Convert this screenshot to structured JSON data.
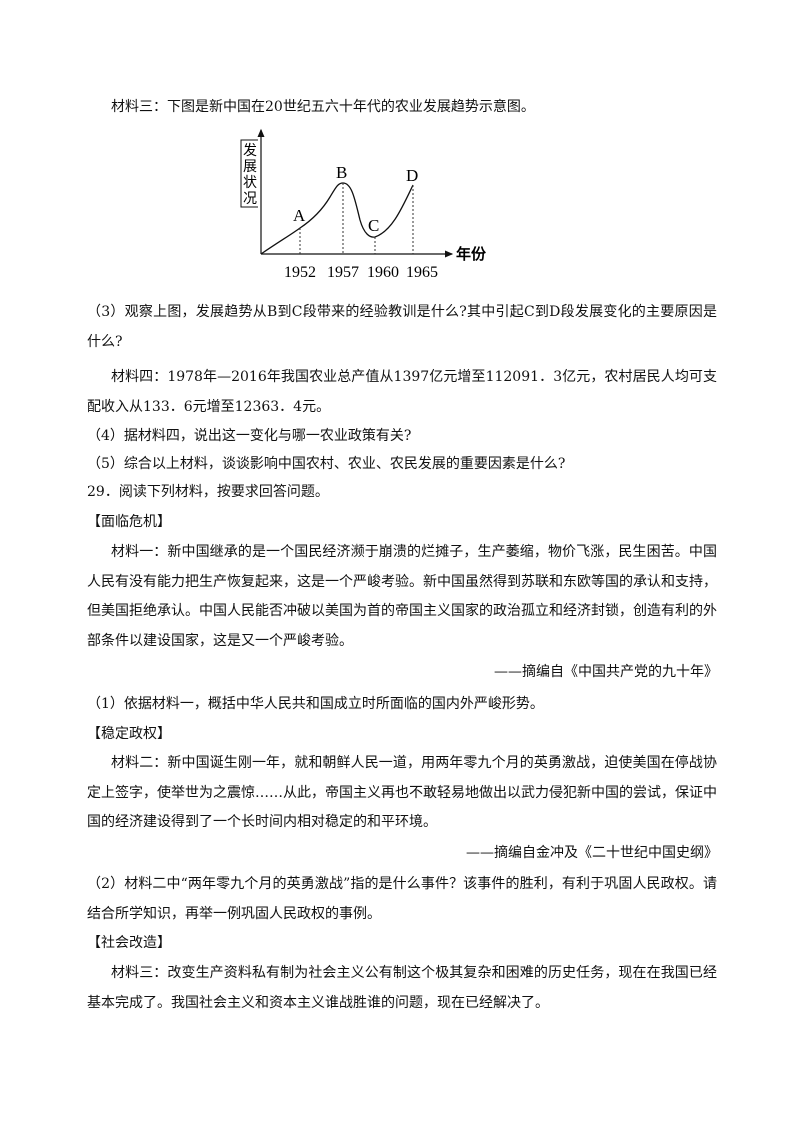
{
  "material3_intro": "材料三：下图是新中国在20世纪五六十年代的农业发展趋势示意图。",
  "diagram": {
    "y_label": [
      "发",
      "展",
      "状",
      "况"
    ],
    "x_label": "年份",
    "points": [
      {
        "label": "A",
        "year": "1952"
      },
      {
        "label": "B",
        "year": "1957"
      },
      {
        "label": "C",
        "year": "1960"
      },
      {
        "label": "D",
        "year": "1965"
      }
    ]
  },
  "q3": "（3）观察上图，发展趋势从B到C段带来的经验教训是什么?其中引起C到D段发展变化的主要原因是什么?",
  "material4": "材料四：1978年—2016年我国农业总产值从1397亿元增至112091．3亿元，农村居民人均可支配收入从133．6元增至12363．4元。",
  "q4": "（4）据材料四，说出这一变化与哪一农业政策有关?",
  "q5": "（5）综合以上材料，谈谈影响中国农村、农业、农民发展的重要因素是什么?",
  "q29": "29．阅读下列材料，按要求回答问题。",
  "section1": "【面临危机】",
  "material1": "材料一：新中国继承的是一个国民经济濒于崩溃的烂摊子，生产萎缩，物价飞涨，民生困苦。中国人民有没有能力把生产恢复起来，这是一个严峻考验。新中国虽然得到苏联和东欧等国的承认和支持，但美国拒绝承认。中国人民能否冲破以美国为首的帝国主义国家的政治孤立和经济封锁，创造有利的外部条件以建设国家，这是又一个严峻考验。",
  "source1": "——摘编自《中国共产党的九十年》",
  "q1": "（1）依据材料一，概括中华人民共和国成立时所面临的国内外严峻形势。",
  "section2": "【稳定政权】",
  "material2": "材料二：新中国诞生刚一年，就和朝鲜人民一道，用两年零九个月的英勇激战，迫使美国在停战协定上签字，使举世为之震惊……从此，帝国主义再也不敢轻易地做出以武力侵犯新中国的尝试，保证中国的经济建设得到了一个长时间内相对稳定的和平环境。",
  "source2": "——摘编自金冲及《二十世纪中国史纲》",
  "q2": "（2）材料二中“两年零九个月的英勇激战”指的是什么事件？该事件的胜利，有利于巩固人民政权。请结合所学知识，再举一例巩固人民政权的事例。",
  "section3": "【社会改造】",
  "material3b": "材料三：改变生产资料私有制为社会主义公有制这个极其复杂和困难的历史任务，现在在我国已经基本完成了。我国社会主义和资本主义谁战胜谁的问题，现在已经解决了。"
}
